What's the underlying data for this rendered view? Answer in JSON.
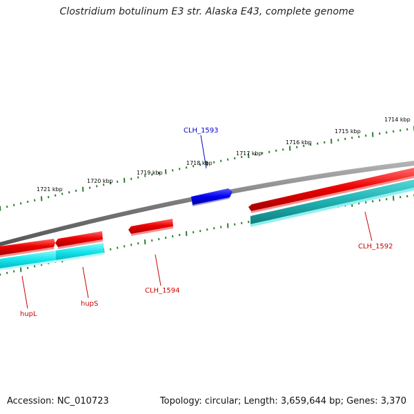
{
  "title": "Clostridium botulinum E3 str. Alaska E43, complete genome",
  "footer": {
    "accession": "Accession: NC_010723",
    "stats": "Topology: circular; Length: 3,659,644 bp; Genes: 3,370"
  },
  "scale": {
    "tick_color": "#2e7d32",
    "labels": [
      "1714 kbp",
      "1715 kbp",
      "1716 kbp",
      "1717 kbp",
      "1718 kbp",
      "1719 kbp",
      "1720 kbp",
      "1721 kbp"
    ]
  },
  "colors": {
    "backbone": "#808080",
    "forward_gene": "#ee0000",
    "reverse_gene": "#0000dd",
    "cds_forward": "#1fb0b0",
    "cds_reverse": "#17e8ec",
    "label_red": "#cc0000",
    "label_blue": "#0000cc"
  },
  "genes": [
    {
      "name": "CLH_1593",
      "strand": "reverse",
      "label_color": "#0000cc"
    },
    {
      "name": "CLH_1592",
      "strand": "forward",
      "label_color": "#cc0000"
    },
    {
      "name": "CLH_1594",
      "strand": "forward",
      "label_color": "#cc0000"
    },
    {
      "name": "hupS",
      "strand": "forward",
      "label_color": "#cc0000"
    },
    {
      "name": "hupL",
      "strand": "forward",
      "label_color": "#cc0000"
    }
  ]
}
